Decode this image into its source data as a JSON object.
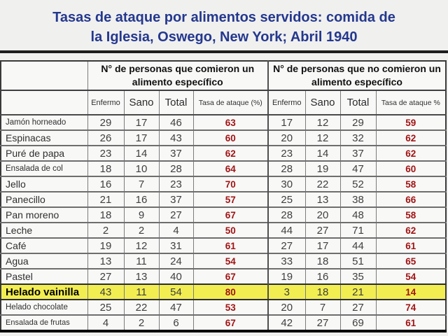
{
  "slide": {
    "title_line1": "Tasas de ataque por alimentos servidos: comida de",
    "title_line2": "la Iglesia, Oswego, New York; Abril 1940"
  },
  "colors": {
    "title_blue": "#24388e",
    "attack_rate_red": "#a11414",
    "highlight_yellow": "#f2ee52",
    "background_gray": "#f0f0ef"
  },
  "table": {
    "group_headers": {
      "ate": "N° de personas que comieron un alimento específico",
      "did_not_eat": "N° de personas que no comieron un alimento específico"
    },
    "columns": {
      "ate": [
        "Enfermo",
        "Sano",
        "Total",
        "Tasa de ataque (%)"
      ],
      "did_not_eat": [
        "Enfermo",
        "Sano",
        "Total",
        "Tasa de ataque %"
      ]
    },
    "rows": [
      {
        "food": "Jamón horneado",
        "highlight": false,
        "ate": {
          "enfermo": 29,
          "sano": 17,
          "total": 46,
          "tasa": 63
        },
        "did_not_eat": {
          "enfermo": 17,
          "sano": 12,
          "total": 29,
          "tasa": 59
        }
      },
      {
        "food": "Espinacas",
        "highlight": false,
        "ate": {
          "enfermo": 26,
          "sano": 17,
          "total": 43,
          "tasa": 60
        },
        "did_not_eat": {
          "enfermo": 20,
          "sano": 12,
          "total": 32,
          "tasa": 62
        }
      },
      {
        "food": "Puré de papa",
        "highlight": false,
        "ate": {
          "enfermo": 23,
          "sano": 14,
          "total": 37,
          "tasa": 62
        },
        "did_not_eat": {
          "enfermo": 23,
          "sano": 14,
          "total": 37,
          "tasa": 62
        }
      },
      {
        "food": "Ensalada de col",
        "highlight": false,
        "ate": {
          "enfermo": 18,
          "sano": 10,
          "total": 28,
          "tasa": 64
        },
        "did_not_eat": {
          "enfermo": 28,
          "sano": 19,
          "total": 47,
          "tasa": 60
        }
      },
      {
        "food": "Jello",
        "highlight": false,
        "ate": {
          "enfermo": 16,
          "sano": 7,
          "total": 23,
          "tasa": 70
        },
        "did_not_eat": {
          "enfermo": 30,
          "sano": 22,
          "total": 52,
          "tasa": 58
        }
      },
      {
        "food": "Panecillo",
        "highlight": false,
        "ate": {
          "enfermo": 21,
          "sano": 16,
          "total": 37,
          "tasa": 57
        },
        "did_not_eat": {
          "enfermo": 25,
          "sano": 13,
          "total": 38,
          "tasa": 66
        }
      },
      {
        "food": "Pan moreno",
        "highlight": false,
        "ate": {
          "enfermo": 18,
          "sano": 9,
          "total": 27,
          "tasa": 67
        },
        "did_not_eat": {
          "enfermo": 28,
          "sano": 20,
          "total": 48,
          "tasa": 58
        }
      },
      {
        "food": "Leche",
        "highlight": false,
        "ate": {
          "enfermo": 2,
          "sano": 2,
          "total": 4,
          "tasa": 50
        },
        "did_not_eat": {
          "enfermo": 44,
          "sano": 27,
          "total": 71,
          "tasa": 62
        }
      },
      {
        "food": "Café",
        "highlight": false,
        "ate": {
          "enfermo": 19,
          "sano": 12,
          "total": 31,
          "tasa": 61
        },
        "did_not_eat": {
          "enfermo": 27,
          "sano": 17,
          "total": 44,
          "tasa": 61
        }
      },
      {
        "food": "Agua",
        "highlight": false,
        "ate": {
          "enfermo": 13,
          "sano": 11,
          "total": 24,
          "tasa": 54
        },
        "did_not_eat": {
          "enfermo": 33,
          "sano": 18,
          "total": 51,
          "tasa": 65
        }
      },
      {
        "food": "Pastel",
        "highlight": false,
        "ate": {
          "enfermo": 27,
          "sano": 13,
          "total": 40,
          "tasa": 67
        },
        "did_not_eat": {
          "enfermo": 19,
          "sano": 16,
          "total": 35,
          "tasa": 54
        }
      },
      {
        "food": "Helado vainilla",
        "highlight": true,
        "ate": {
          "enfermo": 43,
          "sano": 11,
          "total": 54,
          "tasa": 80
        },
        "did_not_eat": {
          "enfermo": 3,
          "sano": 18,
          "total": 21,
          "tasa": 14
        }
      },
      {
        "food": "Helado chocolate",
        "highlight": false,
        "ate": {
          "enfermo": 25,
          "sano": 22,
          "total": 47,
          "tasa": 53
        },
        "did_not_eat": {
          "enfermo": 20,
          "sano": 7,
          "total": 27,
          "tasa": 74
        }
      },
      {
        "food": "Ensalada de frutas",
        "highlight": false,
        "ate": {
          "enfermo": 4,
          "sano": 2,
          "total": 6,
          "tasa": 67
        },
        "did_not_eat": {
          "enfermo": 42,
          "sano": 27,
          "total": 69,
          "tasa": 61
        }
      }
    ]
  }
}
